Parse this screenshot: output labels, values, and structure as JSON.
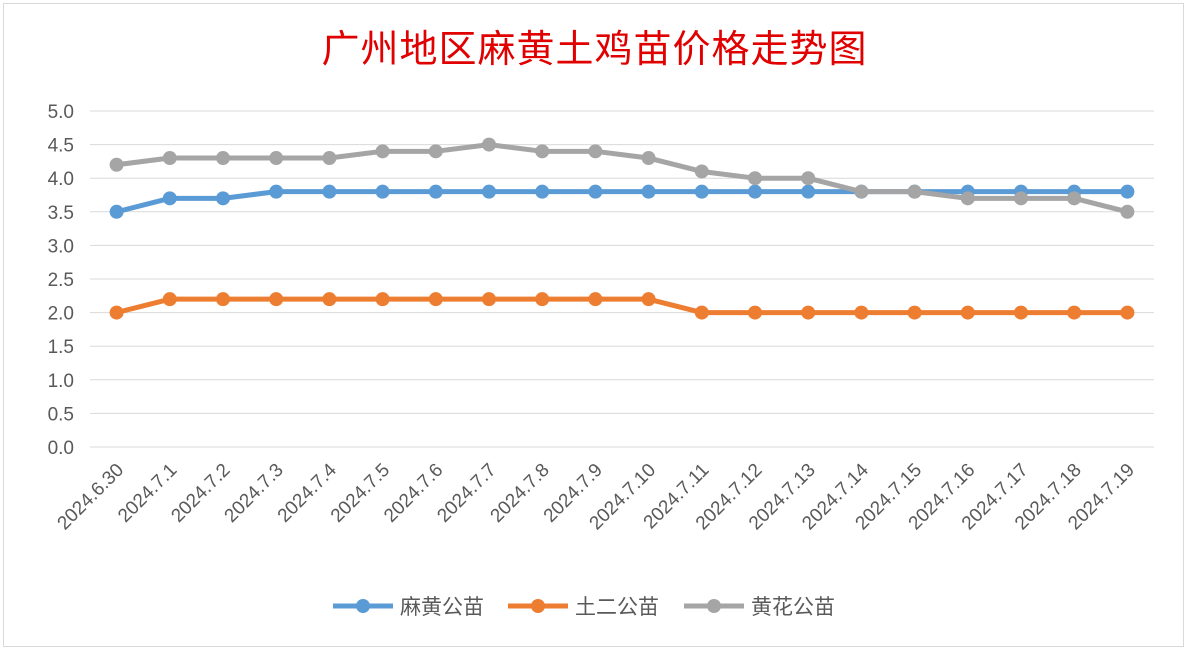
{
  "chart_data": {
    "type": "line",
    "title": "广州地区麻黄土鸡苗价格走势图",
    "categories": [
      "2024.6.30",
      "2024.7.1",
      "2024.7.2",
      "2024.7.3",
      "2024.7.4",
      "2024.7.5",
      "2024.7.6",
      "2024.7.7",
      "2024.7.8",
      "2024.7.9",
      "2024.7.10",
      "2024.7.11",
      "2024.7.12",
      "2024.7.13",
      "2024.7.14",
      "2024.7.15",
      "2024.7.16",
      "2024.7.17",
      "2024.7.18",
      "2024.7.19"
    ],
    "ylim": [
      0,
      5
    ],
    "yticks": [
      "0.0",
      "0.5",
      "1.0",
      "1.5",
      "2.0",
      "2.5",
      "3.0",
      "3.5",
      "4.0",
      "4.5",
      "5.0"
    ],
    "grid": true,
    "legend_position": "bottom",
    "series": [
      {
        "name": "麻黄公苗",
        "color": "#5b9bd5",
        "values": [
          3.5,
          3.7,
          3.7,
          3.8,
          3.8,
          3.8,
          3.8,
          3.8,
          3.8,
          3.8,
          3.8,
          3.8,
          3.8,
          3.8,
          3.8,
          3.8,
          3.8,
          3.8,
          3.8,
          3.8
        ]
      },
      {
        "name": "土二公苗",
        "color": "#ed7d31",
        "values": [
          2.0,
          2.2,
          2.2,
          2.2,
          2.2,
          2.2,
          2.2,
          2.2,
          2.2,
          2.2,
          2.2,
          2.0,
          2.0,
          2.0,
          2.0,
          2.0,
          2.0,
          2.0,
          2.0,
          2.0
        ]
      },
      {
        "name": "黄花公苗",
        "color": "#a5a5a5",
        "values": [
          4.2,
          4.3,
          4.3,
          4.3,
          4.3,
          4.4,
          4.4,
          4.5,
          4.4,
          4.4,
          4.3,
          4.1,
          4.0,
          4.0,
          3.8,
          3.8,
          3.7,
          3.7,
          3.7,
          3.5
        ]
      }
    ]
  }
}
